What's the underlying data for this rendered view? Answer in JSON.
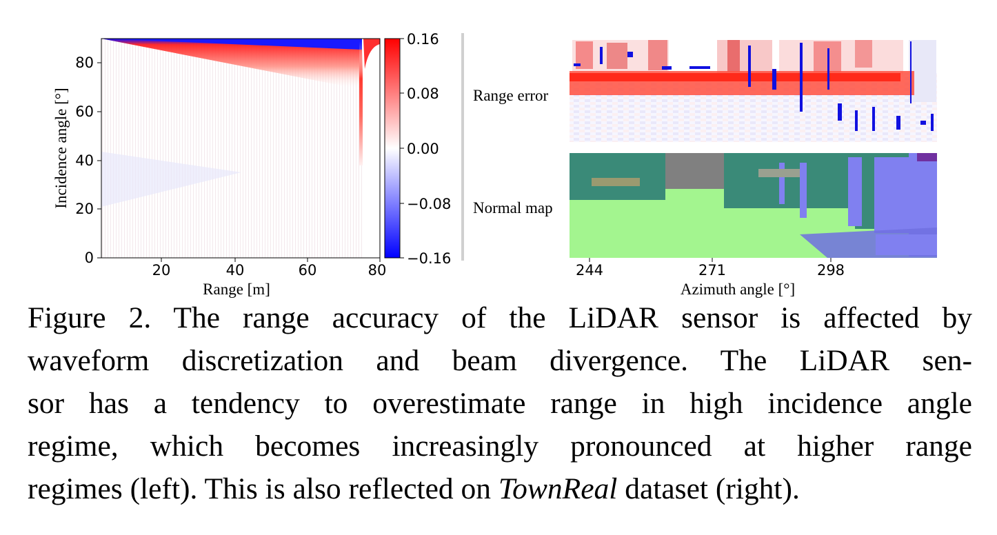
{
  "chart_data": [
    {
      "type": "heatmap",
      "title": "",
      "xlabel": "Range [m]",
      "ylabel": "Incidence angle [°]",
      "xlim": [
        4,
        80
      ],
      "ylim": [
        0,
        90
      ],
      "x_ticks": [
        "20",
        "40",
        "60",
        "80"
      ],
      "y_ticks": [
        "0",
        "20",
        "40",
        "60",
        "80"
      ],
      "colorbar": {
        "range": [
          -0.16,
          0.16
        ],
        "ticks": [
          "0.16",
          "0.08",
          "0.00",
          "−0.08",
          "−0.16"
        ],
        "colormap": "bwr",
        "colors": {
          "low": "#0000ff",
          "mid": "#ffffff",
          "high": "#ff0000"
        }
      },
      "description_values": {
        "cutoff_range": 75,
        "red_band_min_angle": 38,
        "max_error": 0.16,
        "min_error": -0.16
      }
    },
    {
      "type": "heatmap",
      "panels": [
        "Range error",
        "Normal map"
      ],
      "xlabel": "Azimuth angle [°]",
      "x_ticks": [
        "244",
        "271",
        "298"
      ],
      "colors": {
        "normal_ground": "#a3f58f",
        "normal_wall": "#8080f0",
        "normal_sky": "#808080",
        "normal_teal": "#3a8a78",
        "normal_purple": "#7030a0"
      }
    }
  ],
  "caption": {
    "lines": [
      "Figure 2. The range accuracy of the LiDAR sensor is affected by",
      "waveform discretization and beam divergence. The LiDAR sen-",
      "sor has a tendency to overestimate range in high incidence angle",
      "regime, which becomes increasingly pronounced at higher range"
    ],
    "last_line_before": "regimes (left). This is also reflected on ",
    "last_line_italic": "TownReal",
    "last_line_after": " dataset (right)."
  }
}
